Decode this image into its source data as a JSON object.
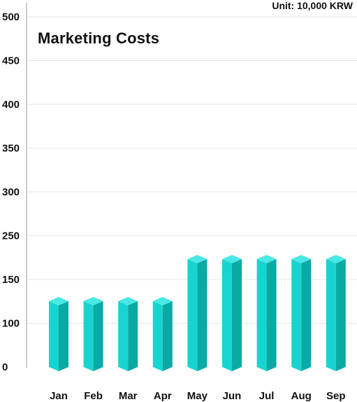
{
  "chart_data": {
    "type": "bar",
    "title": "Marketing Costs",
    "unit": "Unit: 10,000 KRW",
    "categories": [
      "Jan",
      "Feb",
      "Mar",
      "Apr",
      "May",
      "Jun",
      "Jul",
      "Aug",
      "Sep"
    ],
    "values": [
      100,
      100,
      100,
      100,
      160,
      160,
      160,
      160,
      160
    ],
    "y_ticks": [
      "0",
      "100",
      "150",
      "250",
      "300",
      "350",
      "400",
      "450",
      "500"
    ],
    "ylim": [
      0,
      500
    ],
    "grid": true,
    "bar_style": "3d-prism",
    "colors": {
      "bar_front": "#17d4d0",
      "bar_side": "#0aa9a4",
      "bar_top": "#48e8e4",
      "gridline": "#e6e6e6",
      "axis": "#9a9a9a",
      "text": "#111111"
    }
  }
}
